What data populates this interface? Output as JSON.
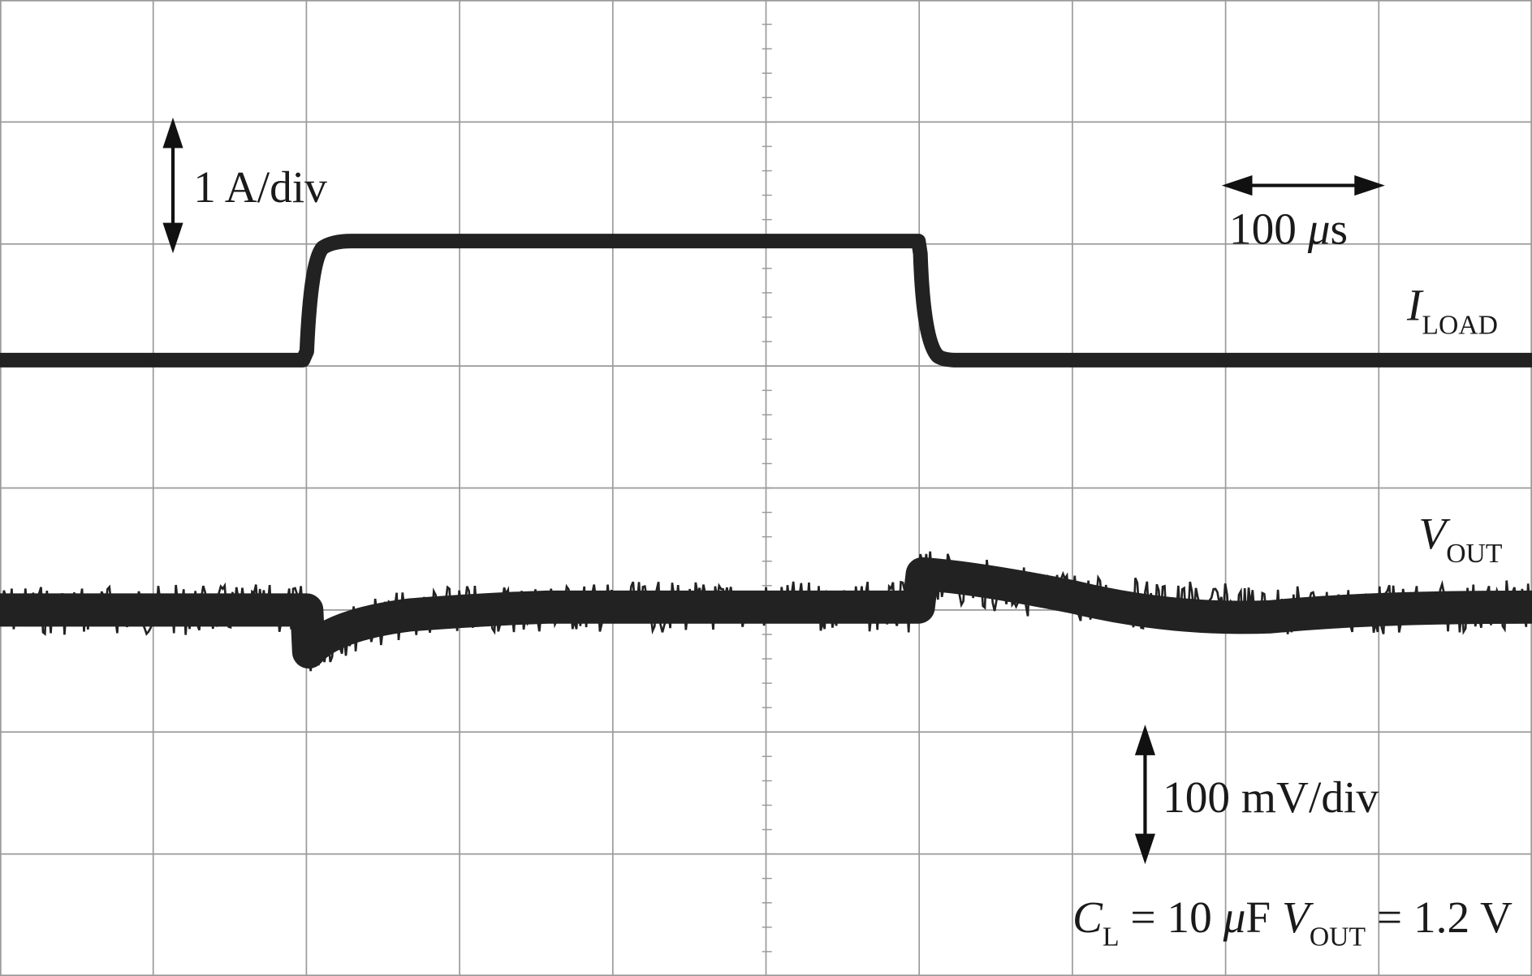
{
  "labels": {
    "current_scale": "1 A/div",
    "time_scale": {
      "number": "100 ",
      "unit_symbol": "μ",
      "unit": "s"
    },
    "iload": {
      "symbol": "I",
      "subscript": "LOAD"
    },
    "vout": {
      "symbol": "V",
      "subscript": "OUT"
    },
    "voltage_scale": "100 mV/div",
    "conditions": {
      "c_symbol": "C",
      "c_subscript": "L",
      "c_value": " = 10 ",
      "c_mu": "μ",
      "c_unit": "F ",
      "v_symbol": "V",
      "v_subscript": "OUT",
      "v_value": " = 1.2 V"
    }
  }
}
